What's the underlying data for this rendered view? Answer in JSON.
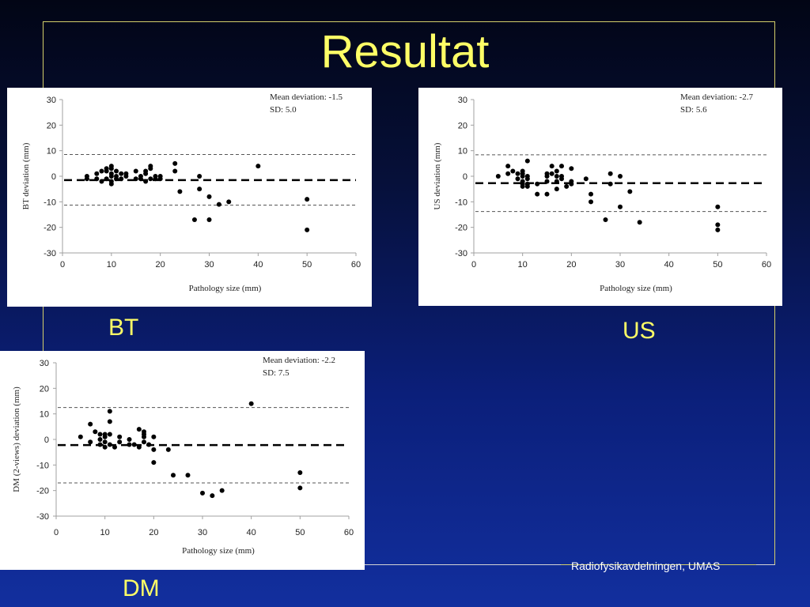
{
  "slide": {
    "title": "Resultat",
    "footer": "Radiofysikavdelningen, UMAS",
    "captions": {
      "bt": "BT",
      "us": "US",
      "dm": "DM"
    }
  },
  "chart_data": [
    {
      "id": "bt",
      "type": "scatter",
      "xlabel": "Pathology size (mm)",
      "ylabel": "BT deviation (mm)",
      "xlim": [
        0,
        60
      ],
      "ylim": [
        -30,
        30
      ],
      "xticks": [
        0,
        10,
        20,
        30,
        40,
        50,
        60
      ],
      "yticks": [
        30,
        20,
        10,
        0,
        -10,
        -20,
        -30
      ],
      "annotation": [
        "Mean deviation: -1.5",
        "SD: 5.0"
      ],
      "mean": -1.5,
      "upper": 8.5,
      "lower": -11.3,
      "points": [
        [
          5,
          -1
        ],
        [
          5,
          0
        ],
        [
          7,
          -1
        ],
        [
          7,
          1
        ],
        [
          8,
          -2
        ],
        [
          8,
          2
        ],
        [
          9,
          -1
        ],
        [
          9,
          2
        ],
        [
          9,
          3
        ],
        [
          10,
          -2
        ],
        [
          10,
          0
        ],
        [
          10,
          1
        ],
        [
          10,
          3
        ],
        [
          10,
          4
        ],
        [
          10,
          -3
        ],
        [
          11,
          -1
        ],
        [
          11,
          2
        ],
        [
          11,
          0
        ],
        [
          12,
          1
        ],
        [
          12,
          -1
        ],
        [
          13,
          0
        ],
        [
          13,
          1
        ],
        [
          15,
          -1
        ],
        [
          15,
          2
        ],
        [
          16,
          0
        ],
        [
          16,
          -1
        ],
        [
          17,
          1
        ],
        [
          17,
          -2
        ],
        [
          17,
          2
        ],
        [
          18,
          3
        ],
        [
          18,
          4
        ],
        [
          18,
          -1
        ],
        [
          19,
          0
        ],
        [
          19,
          -1
        ],
        [
          20,
          0
        ],
        [
          20,
          -1
        ],
        [
          23,
          2
        ],
        [
          23,
          5
        ],
        [
          24,
          -6
        ],
        [
          27,
          -17
        ],
        [
          28,
          0
        ],
        [
          28,
          -5
        ],
        [
          30,
          -17
        ],
        [
          30,
          -8
        ],
        [
          32,
          -11
        ],
        [
          34,
          -10
        ],
        [
          40,
          4
        ],
        [
          50,
          -9
        ],
        [
          50,
          -21
        ]
      ]
    },
    {
      "id": "us",
      "type": "scatter",
      "xlabel": "Pathology size (mm)",
      "ylabel": "US deviation (mm)",
      "xlim": [
        0,
        60
      ],
      "ylim": [
        -30,
        30
      ],
      "xticks": [
        0,
        10,
        20,
        30,
        40,
        50,
        60
      ],
      "yticks": [
        30,
        20,
        10,
        0,
        -10,
        -20,
        -30
      ],
      "annotation": [
        "Mean deviation: -2.7",
        "SD: 5.6"
      ],
      "mean": -2.7,
      "upper": 8.4,
      "lower": -13.8,
      "points": [
        [
          5,
          0
        ],
        [
          7,
          1
        ],
        [
          7,
          4
        ],
        [
          8,
          2
        ],
        [
          9,
          1
        ],
        [
          9,
          -1
        ],
        [
          10,
          -2
        ],
        [
          10,
          0
        ],
        [
          10,
          1
        ],
        [
          10,
          -3
        ],
        [
          10,
          2
        ],
        [
          10,
          -4
        ],
        [
          11,
          -1
        ],
        [
          11,
          -4
        ],
        [
          11,
          -3
        ],
        [
          11,
          0
        ],
        [
          11,
          6
        ],
        [
          13,
          -3
        ],
        [
          13,
          -7
        ],
        [
          15,
          -7
        ],
        [
          15,
          -2
        ],
        [
          15,
          0
        ],
        [
          15,
          1
        ],
        [
          16,
          4
        ],
        [
          16,
          1
        ],
        [
          17,
          -2
        ],
        [
          17,
          2
        ],
        [
          17,
          0
        ],
        [
          17,
          -5
        ],
        [
          18,
          0
        ],
        [
          18,
          4
        ],
        [
          18,
          -1
        ],
        [
          19,
          -4
        ],
        [
          20,
          -2
        ],
        [
          20,
          3
        ],
        [
          20,
          -3
        ],
        [
          23,
          -1
        ],
        [
          24,
          -7
        ],
        [
          24,
          -10
        ],
        [
          27,
          -17
        ],
        [
          28,
          1
        ],
        [
          28,
          -3
        ],
        [
          30,
          -12
        ],
        [
          30,
          0
        ],
        [
          32,
          -6
        ],
        [
          34,
          -18
        ],
        [
          50,
          -12
        ],
        [
          50,
          -19
        ],
        [
          50,
          -21
        ]
      ]
    },
    {
      "id": "dm",
      "type": "scatter",
      "xlabel": "Pathology size (mm)",
      "ylabel": "DM (2-views) deviation (mm)",
      "xlim": [
        0,
        60
      ],
      "ylim": [
        -30,
        30
      ],
      "xticks": [
        0,
        10,
        20,
        30,
        40,
        50,
        60
      ],
      "yticks": [
        30,
        20,
        10,
        0,
        -10,
        -20,
        -30
      ],
      "annotation": [
        "Mean deviation: -2.2",
        "SD: 7.5"
      ],
      "mean": -2.2,
      "upper": 12.5,
      "lower": -17,
      "points": [
        [
          5,
          1
        ],
        [
          7,
          -1
        ],
        [
          7,
          6
        ],
        [
          8,
          3
        ],
        [
          9,
          -2
        ],
        [
          9,
          0
        ],
        [
          9,
          2
        ],
        [
          10,
          -1
        ],
        [
          10,
          -3
        ],
        [
          10,
          1
        ],
        [
          10,
          2
        ],
        [
          11,
          -2
        ],
        [
          11,
          2
        ],
        [
          11,
          7
        ],
        [
          11,
          11
        ],
        [
          12,
          -3
        ],
        [
          13,
          -1
        ],
        [
          13,
          1
        ],
        [
          15,
          0
        ],
        [
          15,
          -2
        ],
        [
          16,
          -2
        ],
        [
          17,
          4
        ],
        [
          17,
          -3
        ],
        [
          18,
          3
        ],
        [
          18,
          1
        ],
        [
          18,
          -1
        ],
        [
          18,
          2
        ],
        [
          19,
          -2
        ],
        [
          20,
          1
        ],
        [
          20,
          -4
        ],
        [
          20,
          -9
        ],
        [
          23,
          -4
        ],
        [
          24,
          -14
        ],
        [
          27,
          -14
        ],
        [
          30,
          -21
        ],
        [
          32,
          -22
        ],
        [
          34,
          -20
        ],
        [
          40,
          14
        ],
        [
          50,
          -13
        ],
        [
          50,
          -19
        ]
      ]
    }
  ]
}
